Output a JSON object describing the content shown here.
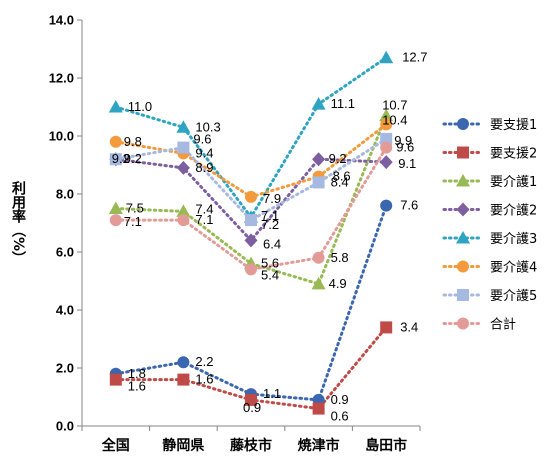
{
  "chart_data": {
    "type": "line",
    "title": "",
    "ylabel": "利用率（%）",
    "xlabel": "",
    "ylim": [
      0,
      14
    ],
    "ytick_step": 2,
    "ytick_labels": [
      "0.0",
      "2.0",
      "4.0",
      "6.0",
      "8.0",
      "10.0",
      "12.0",
      "14.0"
    ],
    "grid": false,
    "legend_position": "right",
    "categories": [
      "全国",
      "静岡県",
      "藤枝市",
      "焼津市",
      "島田市"
    ],
    "series": [
      {
        "name": "要支援1",
        "color": "#3B66B0",
        "marker": "circle",
        "values": [
          1.8,
          2.2,
          1.1,
          0.9,
          7.6
        ],
        "labels": [
          "1.8",
          "2.2",
          "1.1",
          "0.9",
          "7.6"
        ]
      },
      {
        "name": "要支援2",
        "color": "#BE4B48",
        "marker": "square",
        "values": [
          1.6,
          1.6,
          0.9,
          0.6,
          3.4
        ],
        "labels": [
          "1.6",
          "1.6",
          "0.9",
          "0.6",
          "3.4"
        ]
      },
      {
        "name": "要介護1",
        "color": "#98B954",
        "marker": "triangle",
        "values": [
          7.5,
          7.4,
          5.6,
          4.9,
          10.7
        ],
        "labels": [
          "7.5",
          "7.4",
          "5.6",
          "4.9",
          "10.7"
        ]
      },
      {
        "name": "要介護2",
        "color": "#7D5FA0",
        "marker": "diamond",
        "values": [
          9.2,
          8.9,
          6.4,
          9.2,
          9.1
        ],
        "labels": [
          "9.2",
          "8.9",
          "6.4",
          "9.2",
          "9.1"
        ]
      },
      {
        "name": "要介護3",
        "color": "#2EA4C2",
        "marker": "triangle",
        "values": [
          11.0,
          10.3,
          7.2,
          11.1,
          12.7
        ],
        "labels": [
          "11.0",
          "10.3",
          "7.2",
          "11.1",
          "12.7"
        ]
      },
      {
        "name": "要介護4",
        "color": "#F39A3D",
        "marker": "circle",
        "values": [
          9.8,
          9.4,
          7.9,
          8.6,
          10.4
        ],
        "labels": [
          "9.8",
          "9.4",
          "7.9",
          "8.6",
          "10.4"
        ]
      },
      {
        "name": "要介護5",
        "color": "#A6B9E0",
        "marker": "square",
        "values": [
          9.2,
          9.6,
          7.1,
          8.4,
          9.9
        ],
        "labels": [
          "9.2",
          "9.6",
          "7.1",
          "8.4",
          "9.9"
        ]
      },
      {
        "name": "合計",
        "color": "#E39B98",
        "marker": "circle",
        "values": [
          7.1,
          7.1,
          5.4,
          5.8,
          9.6
        ],
        "labels": [
          "7.1",
          "7.1",
          "5.4",
          "5.8",
          "9.6"
        ]
      }
    ]
  }
}
